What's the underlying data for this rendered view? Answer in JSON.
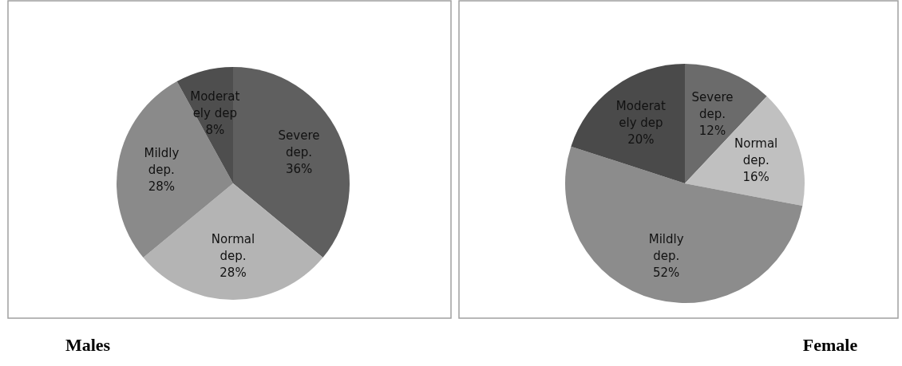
{
  "chart_data": [
    {
      "type": "pie",
      "title": "Males",
      "categories": [
        "Severe dep.",
        "Normal dep.",
        "Mildly dep.",
        "Moderately dep"
      ],
      "values": [
        36,
        28,
        28,
        8
      ],
      "value_labels": [
        "36%",
        "28%",
        "28%",
        "8%"
      ],
      "colors": [
        "#5f5f5f",
        "#b4b4b4",
        "#8a8a8a",
        "#4e4e4e"
      ],
      "legend": false
    },
    {
      "type": "pie",
      "title": "Female",
      "categories": [
        "Severe dep.",
        "Normal dep.",
        "Mildly dep.",
        "Moderately dep"
      ],
      "values": [
        12,
        16,
        52,
        20
      ],
      "value_labels": [
        "12%",
        "16%",
        "52%",
        "20%"
      ],
      "colors": [
        "#6b6b6b",
        "#c0c0c0",
        "#8c8c8c",
        "#4a4a4a"
      ],
      "legend": false
    }
  ]
}
